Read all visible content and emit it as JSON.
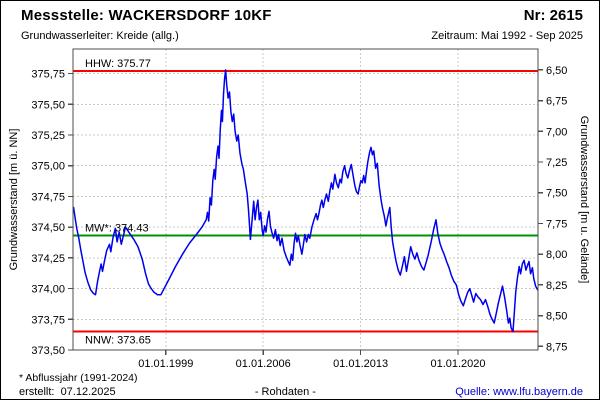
{
  "header": {
    "title": "Messstelle: WACKERSDORF 10KF",
    "number": "Nr: 2615",
    "aquifer": "Grundwasserleiter: Kreide (allg.)",
    "period": "Zeitraum: Mai 1992 - Sep 2025"
  },
  "footer": {
    "note": "* Abflussjahr (1991-2024)",
    "created": "erstellt:  07.12.2025",
    "center": "- Rohdaten -",
    "source": "Quelle: www.lfu.bayern.de",
    "source_color": "#0000cc"
  },
  "chart_data": {
    "type": "line",
    "grid": true,
    "x_range_years": [
      1992.33,
      2025.75
    ],
    "ylim_left": [
      373.5,
      375.95
    ],
    "ylabel_left": "Grundwasserstand [m ü. NN]",
    "ylabel_right": "Grundwasserstand [m u. Gelände]",
    "ground_elevation": 382.28,
    "x_ticks": {
      "years": [
        1999,
        2006,
        2013,
        2020
      ],
      "labels": [
        "01.01.1999",
        "01.01.2006",
        "01.01.2013",
        "01.01.2020"
      ]
    },
    "y_left_ticks": {
      "values": [
        375.75,
        375.5,
        375.25,
        375.0,
        374.75,
        374.5,
        374.25,
        374.0,
        373.75,
        373.5
      ],
      "labels": [
        "375,75",
        "375,50",
        "375,25",
        "375,00",
        "374,75",
        "374,50",
        "374,25",
        "374,00",
        "373,75",
        "373,50"
      ]
    },
    "y_right_ticks": {
      "values": [
        6.5,
        6.75,
        7.0,
        7.25,
        7.5,
        7.75,
        8.0,
        8.25,
        8.5,
        8.75
      ],
      "labels": [
        "6,50",
        "6,75",
        "7,00",
        "7,25",
        "7,50",
        "7,75",
        "8,00",
        "8,25",
        "8,50",
        "8,75"
      ]
    },
    "reference_lines": [
      {
        "id": "hhw",
        "label": "HHW: 375.77",
        "value": 375.77,
        "color": "#ff0000",
        "label_side": "above"
      },
      {
        "id": "mw",
        "label": "MW*: 374.43",
        "value": 374.43,
        "color": "#009000",
        "label_side": "above"
      },
      {
        "id": "nnw",
        "label": "NNW: 373.65",
        "value": 373.65,
        "color": "#ff0000",
        "label_side": "below"
      }
    ],
    "colors": {
      "series": "#0000ee",
      "frame": "#4d4d4d",
      "grid": "#c9c9c9",
      "text": "#000000"
    },
    "series": [
      {
        "name": "Grundwasserstand - Rohdaten",
        "color": "#0000ee",
        "points": [
          [
            1992.37,
            374.66
          ],
          [
            1992.5,
            374.56
          ],
          [
            1992.62,
            374.48
          ],
          [
            1992.75,
            374.41
          ],
          [
            1992.9,
            374.31
          ],
          [
            1993.05,
            374.22
          ],
          [
            1993.2,
            374.13
          ],
          [
            1993.4,
            374.05
          ],
          [
            1993.6,
            373.99
          ],
          [
            1993.8,
            373.96
          ],
          [
            1993.95,
            373.95
          ],
          [
            1994.1,
            374.06
          ],
          [
            1994.22,
            374.13
          ],
          [
            1994.35,
            374.2
          ],
          [
            1994.45,
            374.14
          ],
          [
            1994.6,
            374.23
          ],
          [
            1994.75,
            374.31
          ],
          [
            1994.95,
            374.36
          ],
          [
            1995.05,
            374.3
          ],
          [
            1995.2,
            374.41
          ],
          [
            1995.37,
            374.49
          ],
          [
            1995.5,
            374.38
          ],
          [
            1995.65,
            374.46
          ],
          [
            1995.8,
            374.36
          ],
          [
            1995.95,
            374.43
          ],
          [
            1996.1,
            374.5
          ],
          [
            1996.4,
            374.45
          ],
          [
            1996.7,
            374.4
          ],
          [
            1997.0,
            374.34
          ],
          [
            1997.3,
            374.24
          ],
          [
            1997.55,
            374.12
          ],
          [
            1997.75,
            374.04
          ],
          [
            1997.95,
            374.0
          ],
          [
            1998.15,
            373.97
          ],
          [
            1998.4,
            373.95
          ],
          [
            1998.65,
            373.95
          ],
          [
            1999.2,
            374.07
          ],
          [
            1999.7,
            374.18
          ],
          [
            2000.2,
            374.28
          ],
          [
            2000.7,
            374.37
          ],
          [
            2001.2,
            374.44
          ],
          [
            2001.6,
            374.5
          ],
          [
            2001.9,
            374.56
          ],
          [
            2002.0,
            374.62
          ],
          [
            2002.08,
            374.55
          ],
          [
            2002.18,
            374.74
          ],
          [
            2002.28,
            374.68
          ],
          [
            2002.38,
            374.88
          ],
          [
            2002.48,
            374.97
          ],
          [
            2002.55,
            374.89
          ],
          [
            2002.65,
            375.07
          ],
          [
            2002.75,
            375.16
          ],
          [
            2002.82,
            375.06
          ],
          [
            2002.92,
            375.3
          ],
          [
            2003.0,
            375.45
          ],
          [
            2003.07,
            375.36
          ],
          [
            2003.15,
            375.58
          ],
          [
            2003.22,
            375.7
          ],
          [
            2003.3,
            375.78
          ],
          [
            2003.38,
            375.66
          ],
          [
            2003.48,
            375.55
          ],
          [
            2003.58,
            375.6
          ],
          [
            2003.68,
            375.44
          ],
          [
            2003.78,
            375.36
          ],
          [
            2003.88,
            375.42
          ],
          [
            2003.98,
            375.28
          ],
          [
            2004.1,
            375.2
          ],
          [
            2004.2,
            375.25
          ],
          [
            2004.33,
            375.1
          ],
          [
            2004.46,
            375.02
          ],
          [
            2004.58,
            374.97
          ],
          [
            2004.72,
            374.86
          ],
          [
            2004.85,
            374.77
          ],
          [
            2004.95,
            374.63
          ],
          [
            2005.08,
            374.4
          ],
          [
            2005.2,
            374.56
          ],
          [
            2005.32,
            374.71
          ],
          [
            2005.42,
            374.56
          ],
          [
            2005.52,
            374.66
          ],
          [
            2005.62,
            374.72
          ],
          [
            2005.72,
            374.56
          ],
          [
            2005.82,
            374.62
          ],
          [
            2005.92,
            374.48
          ],
          [
            2006.0,
            374.43
          ],
          [
            2006.1,
            374.51
          ],
          [
            2006.2,
            374.46
          ],
          [
            2006.3,
            374.56
          ],
          [
            2006.42,
            374.63
          ],
          [
            2006.52,
            374.51
          ],
          [
            2006.62,
            374.46
          ],
          [
            2006.75,
            374.41
          ],
          [
            2006.88,
            374.48
          ],
          [
            2007.0,
            374.39
          ],
          [
            2007.1,
            374.44
          ],
          [
            2007.22,
            374.35
          ],
          [
            2007.35,
            374.41
          ],
          [
            2007.5,
            374.31
          ],
          [
            2007.65,
            374.26
          ],
          [
            2007.8,
            374.22
          ],
          [
            2007.92,
            374.19
          ],
          [
            2008.02,
            374.28
          ],
          [
            2008.12,
            374.23
          ],
          [
            2008.22,
            374.37
          ],
          [
            2008.32,
            374.45
          ],
          [
            2008.42,
            374.38
          ],
          [
            2008.52,
            374.43
          ],
          [
            2008.65,
            374.35
          ],
          [
            2008.78,
            374.28
          ],
          [
            2008.9,
            374.37
          ],
          [
            2009.0,
            374.44
          ],
          [
            2009.12,
            374.38
          ],
          [
            2009.25,
            374.44
          ],
          [
            2009.35,
            374.41
          ],
          [
            2009.5,
            374.5
          ],
          [
            2009.65,
            374.56
          ],
          [
            2009.8,
            374.61
          ],
          [
            2009.9,
            374.56
          ],
          [
            2010.0,
            374.61
          ],
          [
            2010.12,
            374.68
          ],
          [
            2010.22,
            374.72
          ],
          [
            2010.32,
            374.66
          ],
          [
            2010.45,
            374.73
          ],
          [
            2010.55,
            374.77
          ],
          [
            2010.68,
            374.71
          ],
          [
            2010.8,
            374.8
          ],
          [
            2010.9,
            374.86
          ],
          [
            2011.0,
            374.81
          ],
          [
            2011.15,
            374.93
          ],
          [
            2011.27,
            374.86
          ],
          [
            2011.4,
            374.82
          ],
          [
            2011.52,
            374.89
          ],
          [
            2011.62,
            374.86
          ],
          [
            2011.72,
            374.95
          ],
          [
            2011.85,
            375.0
          ],
          [
            2011.95,
            374.94
          ],
          [
            2012.08,
            374.9
          ],
          [
            2012.2,
            374.96
          ],
          [
            2012.33,
            375.01
          ],
          [
            2012.45,
            374.93
          ],
          [
            2012.58,
            374.84
          ],
          [
            2012.7,
            374.79
          ],
          [
            2012.82,
            374.77
          ],
          [
            2012.92,
            374.83
          ],
          [
            2013.02,
            374.88
          ],
          [
            2013.12,
            374.86
          ],
          [
            2013.22,
            374.92
          ],
          [
            2013.32,
            374.86
          ],
          [
            2013.42,
            374.95
          ],
          [
            2013.52,
            375.03
          ],
          [
            2013.65,
            375.11
          ],
          [
            2013.75,
            375.15
          ],
          [
            2013.85,
            375.09
          ],
          [
            2013.95,
            375.12
          ],
          [
            2014.08,
            374.98
          ],
          [
            2014.2,
            375.02
          ],
          [
            2014.33,
            374.84
          ],
          [
            2014.46,
            374.73
          ],
          [
            2014.58,
            374.65
          ],
          [
            2014.7,
            374.59
          ],
          [
            2014.82,
            374.51
          ],
          [
            2014.92,
            374.57
          ],
          [
            2015.02,
            374.62
          ],
          [
            2015.1,
            374.66
          ],
          [
            2015.2,
            374.5
          ],
          [
            2015.3,
            374.38
          ],
          [
            2015.42,
            374.3
          ],
          [
            2015.55,
            374.22
          ],
          [
            2015.7,
            374.15
          ],
          [
            2015.85,
            374.11
          ],
          [
            2016.0,
            374.18
          ],
          [
            2016.15,
            374.26
          ],
          [
            2016.3,
            374.14
          ],
          [
            2016.45,
            374.24
          ],
          [
            2016.6,
            374.34
          ],
          [
            2016.75,
            374.28
          ],
          [
            2016.9,
            374.24
          ],
          [
            2017.05,
            374.29
          ],
          [
            2017.2,
            374.23
          ],
          [
            2017.38,
            374.18
          ],
          [
            2017.55,
            374.15
          ],
          [
            2017.7,
            374.21
          ],
          [
            2017.85,
            374.27
          ],
          [
            2018.05,
            374.37
          ],
          [
            2018.25,
            374.48
          ],
          [
            2018.42,
            374.56
          ],
          [
            2018.55,
            374.45
          ],
          [
            2018.7,
            374.37
          ],
          [
            2018.85,
            374.32
          ],
          [
            2019.0,
            374.28
          ],
          [
            2019.18,
            374.22
          ],
          [
            2019.35,
            374.17
          ],
          [
            2019.52,
            374.11
          ],
          [
            2019.7,
            374.06
          ],
          [
            2019.88,
            374.03
          ],
          [
            2020.05,
            373.95
          ],
          [
            2020.2,
            373.9
          ],
          [
            2020.38,
            373.86
          ],
          [
            2020.55,
            373.92
          ],
          [
            2020.7,
            373.97
          ],
          [
            2020.85,
            374.0
          ],
          [
            2021.0,
            373.94
          ],
          [
            2021.12,
            373.89
          ],
          [
            2021.28,
            373.96
          ],
          [
            2021.45,
            373.93
          ],
          [
            2021.62,
            373.91
          ],
          [
            2021.8,
            373.87
          ],
          [
            2021.98,
            373.91
          ],
          [
            2022.15,
            373.85
          ],
          [
            2022.3,
            373.79
          ],
          [
            2022.45,
            373.75
          ],
          [
            2022.6,
            373.72
          ],
          [
            2022.75,
            373.8
          ],
          [
            2022.9,
            373.88
          ],
          [
            2023.05,
            373.95
          ],
          [
            2023.2,
            374.02
          ],
          [
            2023.35,
            373.93
          ],
          [
            2023.5,
            373.82
          ],
          [
            2023.62,
            373.72
          ],
          [
            2023.72,
            373.76
          ],
          [
            2023.82,
            373.68
          ],
          [
            2023.95,
            373.65
          ],
          [
            2024.05,
            373.8
          ],
          [
            2024.15,
            373.97
          ],
          [
            2024.28,
            374.09
          ],
          [
            2024.4,
            374.18
          ],
          [
            2024.5,
            374.12
          ],
          [
            2024.62,
            374.2
          ],
          [
            2024.75,
            374.23
          ],
          [
            2024.88,
            374.15
          ],
          [
            2025.0,
            374.19
          ],
          [
            2025.1,
            374.22
          ],
          [
            2025.22,
            374.12
          ],
          [
            2025.35,
            374.17
          ],
          [
            2025.45,
            374.08
          ],
          [
            2025.58,
            374.02
          ],
          [
            2025.72,
            373.99
          ]
        ]
      }
    ]
  }
}
